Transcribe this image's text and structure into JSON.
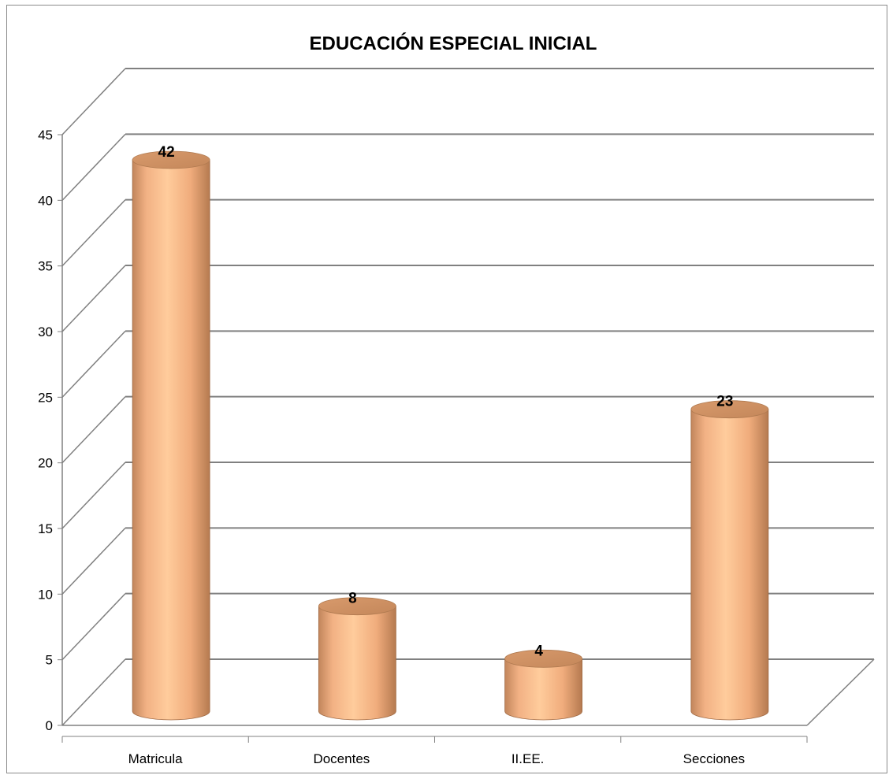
{
  "chart_data": {
    "type": "bar",
    "title": "EDUCACIÓN ESPECIAL INICIAL",
    "categories": [
      "Matricula",
      "Docentes",
      "II.EE.",
      "Secciones"
    ],
    "values": [
      42,
      8,
      4,
      23
    ],
    "data_labels": [
      "42",
      "8",
      "4",
      "23"
    ],
    "ylim": [
      0,
      45
    ],
    "yticks": [
      "0",
      "5",
      "10",
      "15",
      "20",
      "25",
      "30",
      "35",
      "40",
      "45"
    ],
    "grid": true,
    "legend": "none",
    "style": "3d-cylinder",
    "colors": {
      "bar": "#F7B88A",
      "bar_dark": "#C98A5C",
      "grid": "#808080"
    }
  }
}
